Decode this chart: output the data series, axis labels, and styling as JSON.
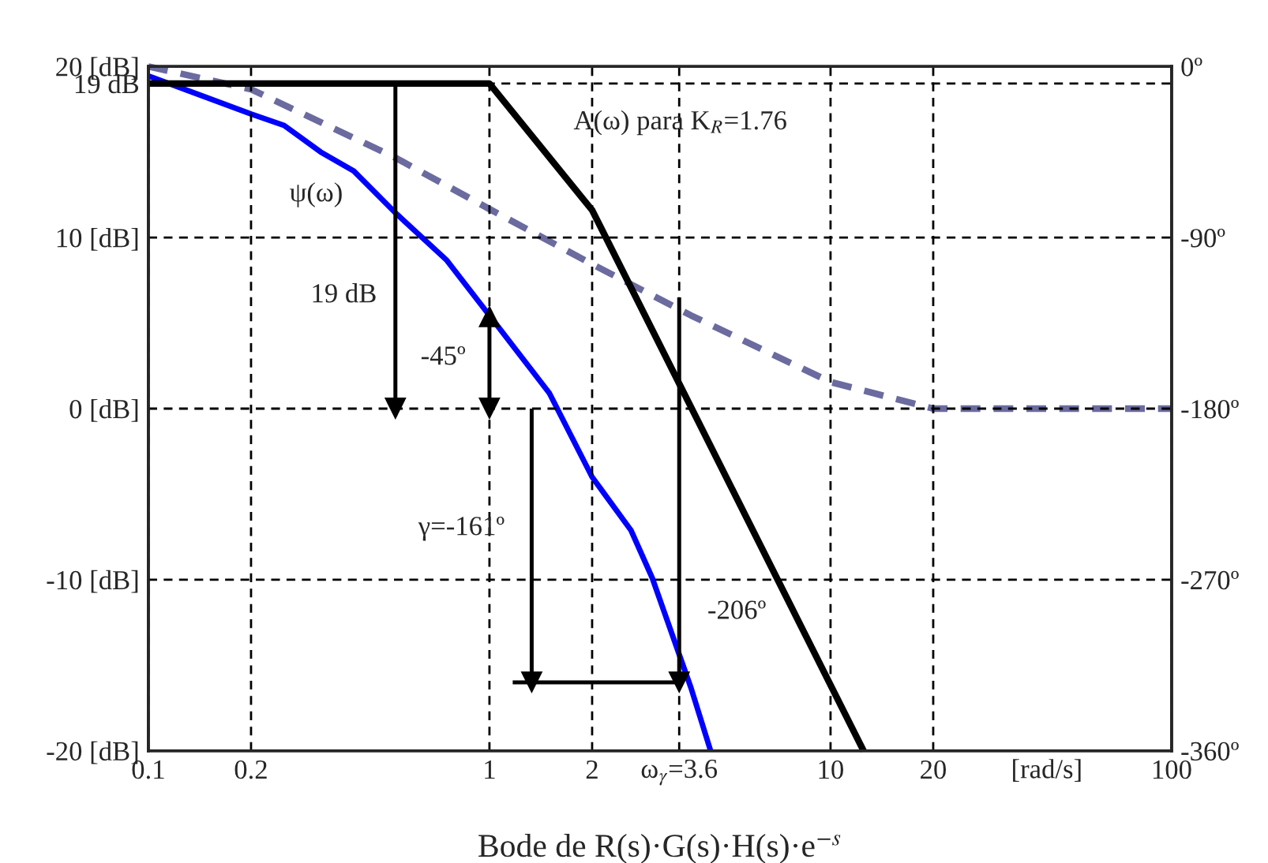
{
  "chart_data": {
    "type": "line",
    "xlabel": "Bode de R(s)·G(s)·H(s)·e$^{−s}$",
    "log": "x",
    "grid": true,
    "legend": false,
    "xlim": [
      0.1,
      100
    ],
    "xticks": [
      0.1,
      0.2,
      1,
      2,
      {
        "value": 3.6,
        "label": "ω$_{γ}$=3.6"
      },
      10,
      20,
      100
    ],
    "ylim": [
      -20,
      20
    ],
    "yticks": [
      {
        "value": -20,
        "label": "-20 [dB]"
      },
      {
        "value": -10,
        "label": "-10 [dB]"
      },
      {
        "value": 0,
        "label": "0 [dB]"
      },
      {
        "value": 10,
        "label": "10 [dB]"
      },
      {
        "value": 19,
        "label": "19 dB"
      },
      {
        "value": 20,
        "label": "20 [dB]"
      }
    ],
    "y2lim": [
      -360,
      0
    ],
    "y2ticks": [
      {
        "value": -360,
        "label": "-360º"
      },
      {
        "value": -270,
        "label": "-270º"
      },
      {
        "value": -180,
        "label": "-180º"
      },
      {
        "value": -90,
        "label": "-90º"
      },
      {
        "value": 0,
        "label": "0º"
      }
    ],
    "series": [
      {
        "color": "#000000",
        "x": [
          0.1,
          1,
          2,
          12.5
        ],
        "values": [
          19,
          19,
          11.6,
          -20
        ]
      },
      {
        "axis": "y2",
        "color": "#0000ff",
        "x": [
          0.1,
          0.2,
          0.25,
          0.32,
          0.4,
          0.53,
          0.75,
          1,
          1.5,
          2,
          2.6,
          3,
          3.9,
          4.45
        ],
        "values": [
          -5,
          -25,
          -31,
          -45,
          -55,
          -77,
          -102,
          -131,
          -172,
          -216,
          -244,
          -269,
          -327,
          -360
        ]
      },
      {
        "axis": "y2",
        "color": "#6b6ba0",
        "line_style": "dashed",
        "x": [
          0.1,
          0.2,
          0.53,
          1,
          2,
          3.9,
          10,
          20,
          100
        ],
        "values": [
          0,
          -12,
          -48,
          -75,
          -104,
          -131,
          -166,
          -180,
          -180
        ]
      },
      {
        "color": "#000000",
        "marker": "triangle",
        "x": [
          0.53,
          0.53
        ],
        "values": [
          19,
          0
        ]
      },
      {
        "color": "#000000",
        "marker": "triangle",
        "x": [
          1,
          1,
          1
        ],
        "values": [
          0,
          2.7,
          5.4
        ]
      },
      {
        "color": "#000000",
        "marker": "triangle",
        "x": [
          1.33,
          1.33
        ],
        "values": [
          0,
          -16
        ]
      },
      {
        "color": "#000000",
        "marker": "triangle",
        "x": [
          3.6,
          3.6
        ],
        "values": [
          6.5,
          -16
        ]
      },
      {
        "color": "#000000",
        "x": [
          1.17,
          3.6
        ],
        "values": [
          -16,
          -16
        ]
      }
    ],
    "annotations": [
      "A(ω) para K$_{R}$=1.76",
      "ψ(ω)",
      "19 dB",
      "-45º",
      "γ=-161º",
      "-206º",
      "[rad/s]"
    ]
  }
}
